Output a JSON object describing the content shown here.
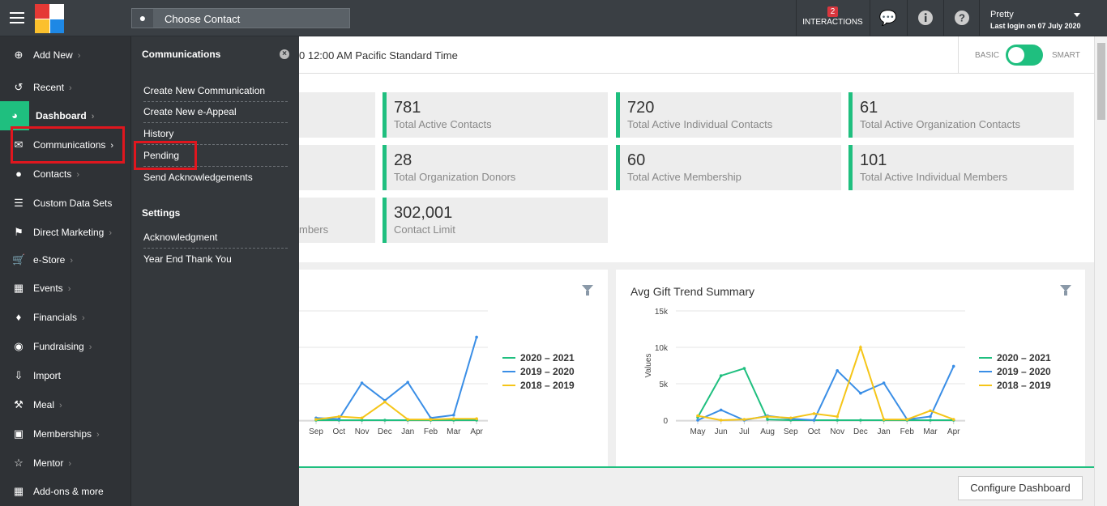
{
  "topbar": {
    "contact_placeholder": "Choose Contact",
    "interactions_count": "2",
    "interactions_label": "INTERACTIONS",
    "user_name": "Pretty",
    "user_last_login": "Last login on 07 July 2020"
  },
  "sidebar": {
    "items": [
      {
        "label": "Add New",
        "icon": "plus-circle-icon"
      },
      {
        "label": "Recent",
        "icon": "history-icon"
      },
      {
        "label": "Dashboard",
        "icon": "dashboard-icon"
      },
      {
        "label": "Communications",
        "icon": "envelope-icon"
      },
      {
        "label": "Contacts",
        "icon": "user-icon"
      },
      {
        "label": "Custom Data Sets",
        "icon": "database-icon"
      },
      {
        "label": "Direct Marketing",
        "icon": "tag-icon"
      },
      {
        "label": "e-Store",
        "icon": "cart-icon"
      },
      {
        "label": "Events",
        "icon": "calendar-icon"
      },
      {
        "label": "Financials",
        "icon": "money-icon"
      },
      {
        "label": "Fundraising",
        "icon": "moneybag-icon"
      },
      {
        "label": "Import",
        "icon": "import-icon"
      },
      {
        "label": "Meal",
        "icon": "utensils-icon"
      },
      {
        "label": "Memberships",
        "icon": "id-card-icon"
      },
      {
        "label": "Mentor",
        "icon": "mentor-icon"
      },
      {
        "label": "Add-ons & more",
        "icon": "grid-icon"
      }
    ]
  },
  "submenu": {
    "heading": "Communications",
    "items": [
      "Create New Communication",
      "Create New e-Appeal",
      "History",
      "Pending",
      "Send Acknowledgements"
    ],
    "settings_heading": "Settings",
    "settings_items": [
      "Acknowledgment",
      "Year End Thank You"
    ]
  },
  "header": {
    "timezone_text": "0 12:00 AM Pacific Standard Time",
    "toggle_basic": "BASIC",
    "toggle_smart": "SMART"
  },
  "stats": [
    {
      "value": "781",
      "label": "Total Active Contacts"
    },
    {
      "value": "720",
      "label": "Total Active Individual Contacts"
    },
    {
      "value": "61",
      "label": "Total Active Organization Contacts"
    },
    {
      "value": "28",
      "label": "Total Organization Donors"
    },
    {
      "value": "60",
      "label": "Total Active Membership"
    },
    {
      "value": "101",
      "label": "Total Active Individual Members"
    },
    {
      "value": "302,001",
      "label": "Contact Limit"
    },
    {
      "value": "",
      "label": "mbers"
    }
  ],
  "colors": {
    "accent": "#1fbf7f",
    "series_2020_2021": "#1fbf7f",
    "series_2019_2020": "#3a8ee6",
    "series_2018_2019": "#f5c518",
    "highlight": "#e0161e"
  },
  "chart_data": [
    {
      "type": "line",
      "title": "",
      "categories": [
        "Sep",
        "Oct",
        "Nov",
        "Dec",
        "Jan",
        "Feb",
        "Mar",
        "Apr"
      ],
      "series": [
        {
          "name": "2020 – 2021",
          "values": [
            0,
            0,
            0,
            0,
            0,
            0,
            0,
            0
          ]
        },
        {
          "name": "2019 – 2020",
          "values": [
            300,
            150,
            5100,
            2700,
            5200,
            300,
            700,
            11400
          ]
        },
        {
          "name": "2018 – 2019",
          "values": [
            100,
            500,
            300,
            2500,
            100,
            100,
            200,
            200
          ]
        }
      ],
      "ylim": [
        0,
        15000
      ]
    },
    {
      "type": "line",
      "title": "Avg Gift Trend Summary",
      "categories": [
        "May",
        "Jun",
        "Jul",
        "Aug",
        "Sep",
        "Oct",
        "Nov",
        "Dec",
        "Jan",
        "Feb",
        "Mar",
        "Apr"
      ],
      "ylabel": "Values",
      "yticks": [
        "15k",
        "10k",
        "5k",
        "0"
      ],
      "series": [
        {
          "name": "2020 – 2021",
          "values": [
            400,
            6100,
            7100,
            100,
            0,
            0,
            0,
            0,
            0,
            0,
            0,
            0
          ]
        },
        {
          "name": "2019 – 2020",
          "values": [
            0,
            1400,
            0,
            600,
            200,
            0,
            6800,
            3700,
            5100,
            100,
            500,
            7400
          ]
        },
        {
          "name": "2018 – 2019",
          "values": [
            600,
            0,
            100,
            500,
            300,
            900,
            500,
            10000,
            100,
            100,
            1300,
            100
          ]
        }
      ],
      "ylim": [
        0,
        15000
      ]
    }
  ],
  "legend": [
    "2020 – 2021",
    "2019 – 2020",
    "2018 – 2019"
  ],
  "footer": {
    "configure_label": "Configure Dashboard"
  }
}
